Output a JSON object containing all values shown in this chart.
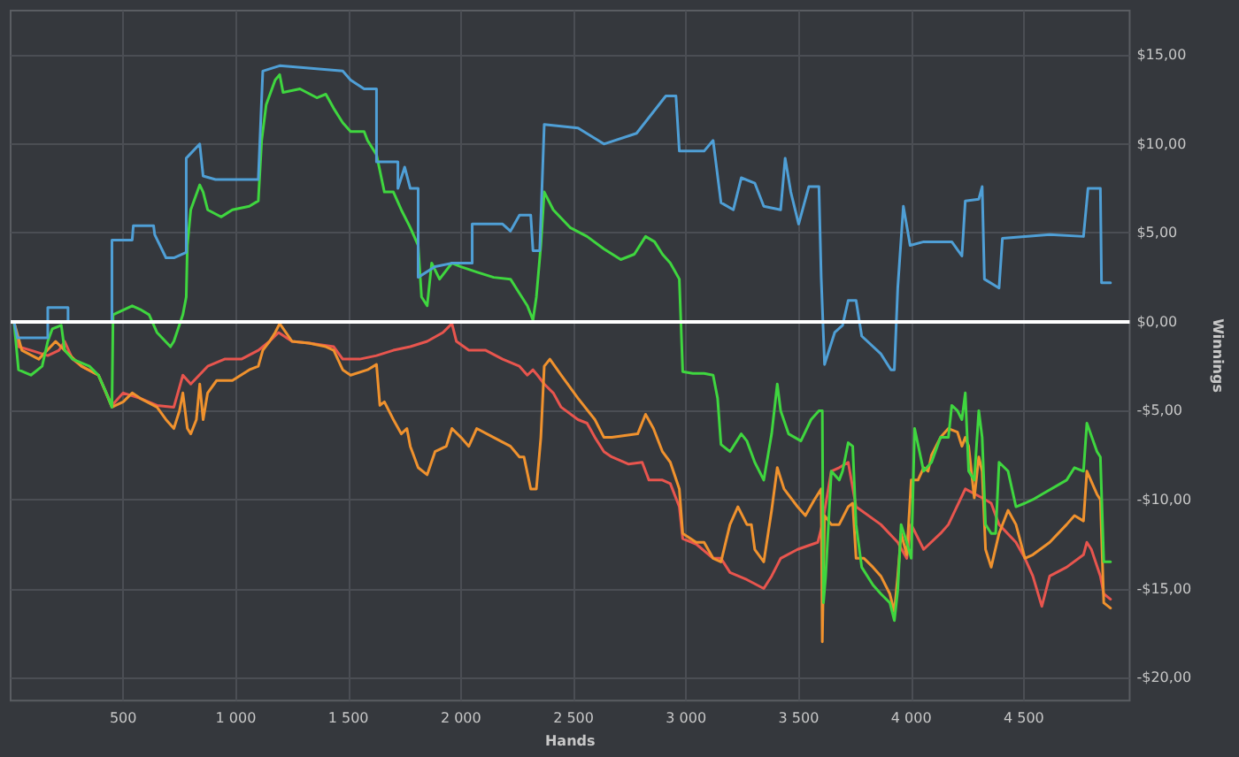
{
  "chart_data": {
    "type": "line",
    "xlabel": "Hands",
    "ylabel": "Winnings",
    "xlim": [
      0,
      4970
    ],
    "ylim": [
      -21.3,
      17.5
    ],
    "xticks": [
      {
        "value": 500,
        "label": "500"
      },
      {
        "value": 1000,
        "label": "1 000"
      },
      {
        "value": 1500,
        "label": "1 500"
      },
      {
        "value": 2000,
        "label": "2 000"
      },
      {
        "value": 2500,
        "label": "2 500"
      },
      {
        "value": 3000,
        "label": "3 000"
      },
      {
        "value": 3500,
        "label": "3 500"
      },
      {
        "value": 4000,
        "label": "4 000"
      },
      {
        "value": 4500,
        "label": "4 500"
      }
    ],
    "yticks": [
      {
        "value": -20,
        "label": "-$20,00"
      },
      {
        "value": -15,
        "label": "-$15,00"
      },
      {
        "value": -10,
        "label": "-$10,00"
      },
      {
        "value": -5,
        "label": "-$5,00"
      },
      {
        "value": 0,
        "label": "$0,00"
      },
      {
        "value": 5,
        "label": "$5,00"
      },
      {
        "value": 10,
        "label": "$10,00"
      },
      {
        "value": 15,
        "label": "$15,00"
      }
    ],
    "grid": true,
    "marker": "none",
    "line_style": "solid",
    "ref_lines": [
      {
        "axis": "y",
        "value": 0,
        "color": "#ffffff"
      }
    ],
    "series": [
      {
        "color": "#e8554e",
        "x": [
          15,
          35,
          90,
          165,
          215,
          240,
          275,
          315,
          390,
          450,
          500,
          575,
          650,
          725,
          765,
          800,
          875,
          950,
          1025,
          1100,
          1150,
          1190,
          1250,
          1325,
          1435,
          1475,
          1550,
          1625,
          1700,
          1775,
          1850,
          1920,
          1960,
          1980,
          2035,
          2110,
          2185,
          2260,
          2295,
          2320,
          2340,
          2370,
          2410,
          2445,
          2520,
          2560,
          2595,
          2635,
          2670,
          2745,
          2805,
          2835,
          2895,
          2930,
          2970,
          2985,
          3045,
          3120,
          3155,
          3195,
          3270,
          3345,
          3380,
          3420,
          3495,
          3585,
          3605,
          3645,
          3680,
          3720,
          3755,
          3865,
          3940,
          3980,
          4000,
          4055,
          4130,
          4165,
          4240,
          4315,
          4355,
          4390,
          4465,
          4505,
          4540,
          4580,
          4615,
          4690,
          4765,
          4780,
          4800,
          4840,
          4855,
          4885
        ],
        "values": [
          0,
          -1.4,
          -1.6,
          -1.9,
          -1.6,
          -1.1,
          -2.1,
          -2.5,
          -3.0,
          -4.7,
          -4.0,
          -4.3,
          -4.7,
          -4.8,
          -3.0,
          -3.5,
          -2.5,
          -2.1,
          -2.1,
          -1.6,
          -1.1,
          -0.6,
          -1.1,
          -1.2,
          -1.4,
          -2.1,
          -2.1,
          -1.9,
          -1.6,
          -1.4,
          -1.1,
          -0.6,
          -0.1,
          -1.1,
          -1.6,
          -1.6,
          -2.1,
          -2.5,
          -3.0,
          -2.7,
          -3.0,
          -3.5,
          -4.0,
          -4.8,
          -5.5,
          -5.7,
          -6.5,
          -7.3,
          -7.6,
          -8.0,
          -7.9,
          -8.9,
          -8.9,
          -9.1,
          -10.4,
          -12.2,
          -12.5,
          -13.3,
          -13.3,
          -14.1,
          -14.5,
          -15.0,
          -14.3,
          -13.3,
          -12.8,
          -12.4,
          -11.4,
          -8.4,
          -8.2,
          -7.9,
          -10.4,
          -11.4,
          -12.4,
          -13.3,
          -11.4,
          -12.8,
          -11.9,
          -11.4,
          -9.4,
          -9.9,
          -10.2,
          -11.4,
          -12.4,
          -13.3,
          -14.3,
          -16.0,
          -14.3,
          -13.8,
          -13.1,
          -12.4,
          -12.8,
          -14.3,
          -15.3,
          -15.6
        ]
      },
      {
        "color": "#f0922e",
        "x": [
          15,
          50,
          125,
          200,
          240,
          315,
          390,
          450,
          500,
          540,
          575,
          650,
          690,
          725,
          750,
          765,
          785,
          800,
          825,
          840,
          855,
          875,
          915,
          985,
          1060,
          1100,
          1120,
          1150,
          1175,
          1195,
          1250,
          1325,
          1400,
          1435,
          1475,
          1510,
          1585,
          1625,
          1640,
          1660,
          1700,
          1735,
          1760,
          1775,
          1810,
          1850,
          1885,
          1935,
          1960,
          2000,
          2035,
          2070,
          2145,
          2220,
          2260,
          2280,
          2310,
          2335,
          2355,
          2370,
          2395,
          2445,
          2520,
          2595,
          2635,
          2670,
          2785,
          2820,
          2855,
          2895,
          2930,
          2970,
          2985,
          3045,
          3080,
          3120,
          3155,
          3195,
          3230,
          3270,
          3290,
          3305,
          3345,
          3380,
          3405,
          3435,
          3495,
          3530,
          3570,
          3600,
          3605,
          3615,
          3645,
          3680,
          3720,
          3740,
          3755,
          3790,
          3830,
          3865,
          3905,
          3925,
          3940,
          3955,
          3980,
          4000,
          4030,
          4055,
          4075,
          4090,
          4130,
          4165,
          4205,
          4225,
          4240,
          4255,
          4280,
          4300,
          4315,
          4330,
          4355,
          4390,
          4430,
          4465,
          4505,
          4540,
          4615,
          4690,
          4725,
          4765,
          4780,
          4825,
          4840,
          4855,
          4885
        ],
        "values": [
          0,
          -1.6,
          -2.1,
          -1.1,
          -1.6,
          -2.5,
          -3.0,
          -4.8,
          -4.5,
          -4.0,
          -4.3,
          -4.8,
          -5.5,
          -6.0,
          -5.0,
          -4.0,
          -6.0,
          -6.3,
          -5.5,
          -3.5,
          -5.5,
          -4.0,
          -3.3,
          -3.3,
          -2.7,
          -2.5,
          -1.6,
          -1.1,
          -0.6,
          -0.1,
          -1.1,
          -1.2,
          -1.4,
          -1.6,
          -2.7,
          -3.0,
          -2.7,
          -2.4,
          -4.7,
          -4.5,
          -5.5,
          -6.3,
          -6.0,
          -7.0,
          -8.2,
          -8.6,
          -7.3,
          -7.0,
          -6.0,
          -6.5,
          -7.0,
          -6.0,
          -6.5,
          -7.0,
          -7.6,
          -7.6,
          -9.4,
          -9.4,
          -6.5,
          -2.5,
          -2.1,
          -3.0,
          -4.3,
          -5.5,
          -6.5,
          -6.5,
          -6.3,
          -5.2,
          -6.0,
          -7.3,
          -7.9,
          -9.4,
          -11.9,
          -12.4,
          -12.4,
          -13.3,
          -13.5,
          -11.4,
          -10.4,
          -11.4,
          -11.4,
          -12.8,
          -13.5,
          -10.6,
          -8.2,
          -9.4,
          -10.4,
          -10.9,
          -10.0,
          -9.4,
          -18.0,
          -10.9,
          -11.4,
          -11.4,
          -10.4,
          -10.2,
          -13.3,
          -13.3,
          -13.8,
          -14.3,
          -15.3,
          -16.3,
          -14.3,
          -11.9,
          -13.1,
          -8.9,
          -8.9,
          -8.2,
          -8.4,
          -7.5,
          -6.5,
          -6.0,
          -6.2,
          -7.0,
          -6.5,
          -7.0,
          -9.9,
          -7.6,
          -8.4,
          -12.8,
          -13.8,
          -11.9,
          -10.6,
          -11.4,
          -13.3,
          -13.1,
          -12.4,
          -11.4,
          -10.9,
          -11.2,
          -8.4,
          -9.7,
          -10.0,
          -15.8,
          -16.1
        ]
      },
      {
        "color": "#3fd63f",
        "x": [
          15,
          35,
          90,
          140,
          165,
          185,
          225,
          240,
          275,
          350,
          390,
          425,
          450,
          455,
          540,
          575,
          615,
          650,
          710,
          725,
          765,
          780,
          785,
          800,
          840,
          855,
          875,
          935,
          985,
          1060,
          1100,
          1115,
          1135,
          1175,
          1195,
          1210,
          1285,
          1360,
          1400,
          1435,
          1475,
          1510,
          1570,
          1585,
          1625,
          1660,
          1700,
          1735,
          1775,
          1810,
          1825,
          1850,
          1870,
          1905,
          1960,
          2000,
          2070,
          2145,
          2220,
          2260,
          2295,
          2320,
          2335,
          2355,
          2370,
          2410,
          2485,
          2560,
          2635,
          2710,
          2770,
          2820,
          2860,
          2895,
          2930,
          2970,
          2985,
          3030,
          3080,
          3120,
          3140,
          3155,
          3195,
          3245,
          3270,
          3305,
          3345,
          3380,
          3405,
          3420,
          3455,
          3510,
          3555,
          3590,
          3605,
          3610,
          3620,
          3645,
          3680,
          3695,
          3720,
          3740,
          3755,
          3780,
          3830,
          3865,
          3905,
          3925,
          3940,
          3955,
          3980,
          4000,
          4015,
          4055,
          4090,
          4130,
          4165,
          4180,
          4205,
          4225,
          4240,
          4255,
          4280,
          4300,
          4315,
          4330,
          4355,
          4375,
          4390,
          4430,
          4465,
          4505,
          4540,
          4580,
          4690,
          4725,
          4765,
          4780,
          4825,
          4840,
          4855,
          4885
        ],
        "values": [
          0,
          -2.7,
          -3.0,
          -2.5,
          -1.1,
          -0.4,
          -0.2,
          -1.6,
          -2.1,
          -2.5,
          -3.0,
          -4.0,
          -4.8,
          0.4,
          0.9,
          0.7,
          0.4,
          -0.6,
          -1.4,
          -1.1,
          0.4,
          1.4,
          4.3,
          6.3,
          7.7,
          7.3,
          6.3,
          5.9,
          6.3,
          6.5,
          6.8,
          10.2,
          12.2,
          13.6,
          13.9,
          12.9,
          13.1,
          12.6,
          12.8,
          12.0,
          11.2,
          10.7,
          10.7,
          10.2,
          9.4,
          7.3,
          7.3,
          6.3,
          5.3,
          4.3,
          1.4,
          0.9,
          3.3,
          2.4,
          3.3,
          3.1,
          2.8,
          2.5,
          2.4,
          1.6,
          0.9,
          0.1,
          1.4,
          4.3,
          7.3,
          6.3,
          5.3,
          4.8,
          4.1,
          3.5,
          3.8,
          4.8,
          4.5,
          3.8,
          3.3,
          2.4,
          -2.8,
          -2.9,
          -2.9,
          -3.0,
          -4.3,
          -6.9,
          -7.3,
          -6.3,
          -6.7,
          -7.9,
          -8.9,
          -6.3,
          -3.5,
          -5.0,
          -6.3,
          -6.7,
          -5.5,
          -5.0,
          -5.0,
          -15.8,
          -14.3,
          -8.4,
          -8.9,
          -8.4,
          -6.8,
          -7.0,
          -11.4,
          -13.8,
          -14.8,
          -15.3,
          -15.8,
          -16.8,
          -15.1,
          -11.4,
          -12.4,
          -13.3,
          -6.0,
          -8.4,
          -7.9,
          -6.5,
          -6.5,
          -4.7,
          -5.0,
          -5.5,
          -4.0,
          -8.4,
          -8.9,
          -5.0,
          -6.5,
          -11.4,
          -11.9,
          -11.9,
          -7.9,
          -8.4,
          -10.4,
          -10.2,
          -10.0,
          -9.7,
          -8.9,
          -8.2,
          -8.4,
          -5.7,
          -7.3,
          -7.6,
          -13.5,
          -13.5
        ]
      },
      {
        "color": "#4f9fd6",
        "x": [
          15,
          30,
          165,
          165,
          255,
          255,
          450,
          450,
          540,
          545,
          635,
          640,
          690,
          725,
          780,
          780,
          840,
          855,
          910,
          1100,
          1120,
          1195,
          1475,
          1510,
          1570,
          1625,
          1625,
          1720,
          1720,
          1750,
          1775,
          1810,
          1810,
          1885,
          1960,
          2050,
          2050,
          2185,
          2220,
          2260,
          2310,
          2320,
          2350,
          2370,
          2520,
          2635,
          2780,
          2910,
          2955,
          2970,
          3080,
          3120,
          3155,
          3210,
          3245,
          3305,
          3345,
          3420,
          3440,
          3465,
          3500,
          3545,
          3590,
          3600,
          3615,
          3660,
          3695,
          3720,
          3755,
          3780,
          3865,
          3910,
          3925,
          3940,
          3965,
          3995,
          4055,
          4180,
          4225,
          4240,
          4300,
          4315,
          4325,
          4390,
          4405,
          4615,
          4765,
          4785,
          4840,
          4845,
          4885
        ],
        "values": [
          0,
          -0.9,
          -0.9,
          0.8,
          0.8,
          0,
          0,
          4.6,
          4.6,
          5.4,
          5.4,
          4.9,
          3.6,
          3.6,
          3.9,
          9.2,
          10.0,
          8.2,
          8.0,
          8.0,
          14.1,
          14.4,
          14.1,
          13.6,
          13.1,
          13.1,
          9.0,
          9.0,
          7.5,
          8.7,
          7.5,
          7.5,
          2.5,
          3.1,
          3.3,
          3.3,
          5.5,
          5.5,
          5.1,
          6.0,
          6.0,
          4.0,
          4.0,
          11.1,
          10.9,
          10.0,
          10.6,
          12.7,
          12.7,
          9.6,
          9.6,
          10.2,
          6.7,
          6.3,
          8.1,
          7.8,
          6.5,
          6.3,
          9.2,
          7.3,
          5.5,
          7.6,
          7.6,
          2.5,
          -2.4,
          -0.6,
          -0.2,
          1.2,
          1.2,
          -0.8,
          -1.8,
          -2.7,
          -2.7,
          1.9,
          6.5,
          4.3,
          4.5,
          4.5,
          3.7,
          6.8,
          6.9,
          7.6,
          2.4,
          1.9,
          4.7,
          4.9,
          4.8,
          7.5,
          7.5,
          2.2,
          2.2
        ]
      }
    ]
  }
}
